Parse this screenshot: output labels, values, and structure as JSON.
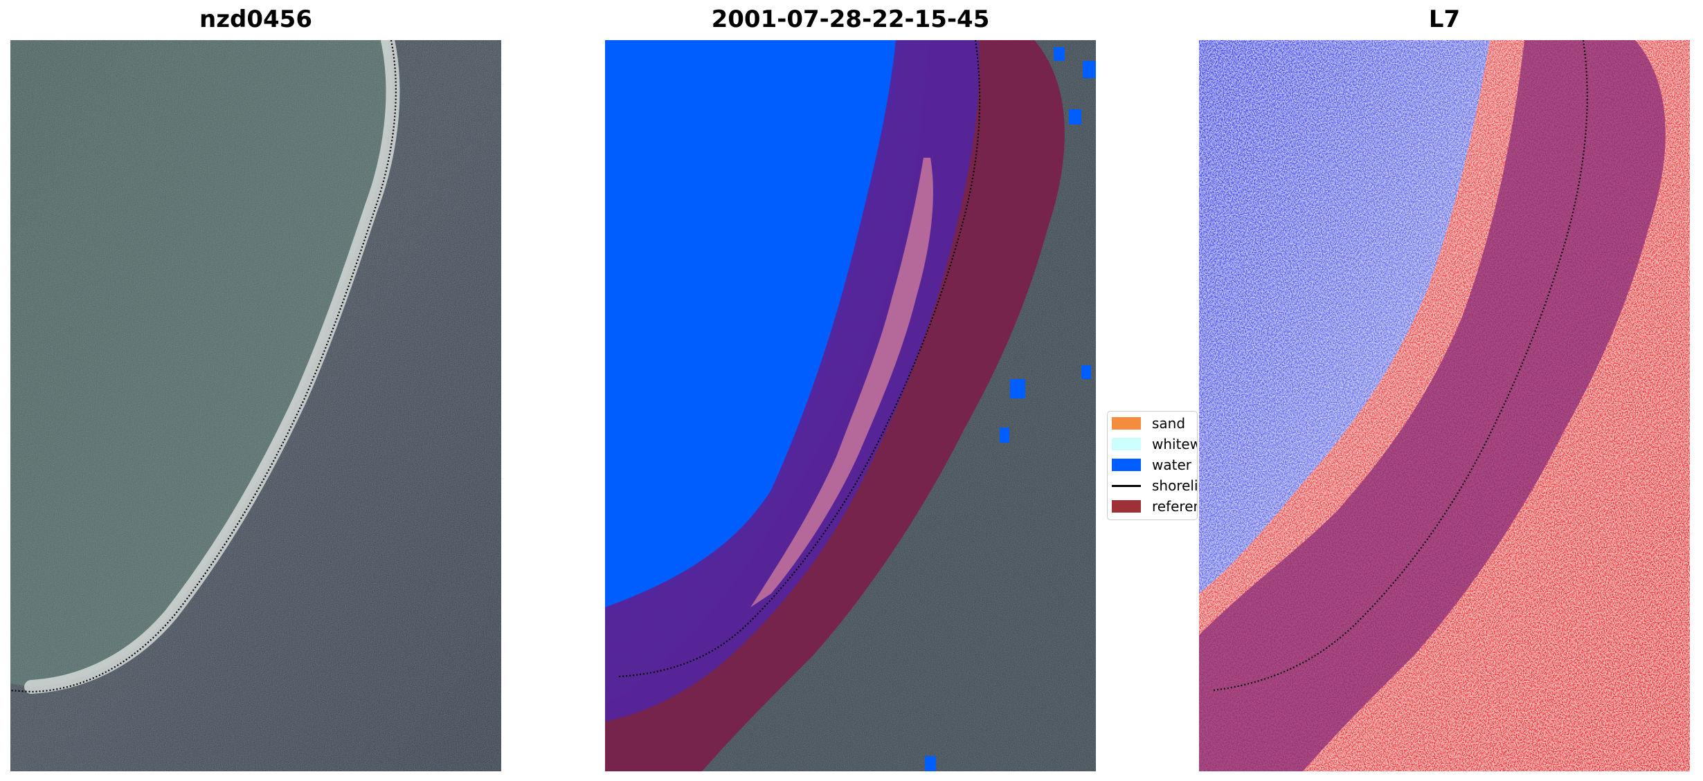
{
  "panels": [
    {
      "title": "nzd0456"
    },
    {
      "title": "2001-07-28-22-15-45"
    },
    {
      "title": "L7"
    }
  ],
  "legend": {
    "items": [
      {
        "label": "sand",
        "color": "#f58b3c"
      },
      {
        "label": "whitewater",
        "color": "#ccffff"
      },
      {
        "label": "water",
        "color": "#005eff"
      },
      {
        "label": "shoreline",
        "color": "#000000"
      },
      {
        "label": "reference shoreline buffer",
        "color": "#9e3135"
      }
    ]
  },
  "colors": {
    "water_class": "#005eff",
    "buffer": "#7a1f4a",
    "buffer_on_water": "#56249a",
    "sand_class_overlay": "#b5699a",
    "ocean_rgb": "#4f6e6b",
    "land_rgb": "#2f3f52",
    "index_negative": "#3b3bf5",
    "index_positive": "#f0322e"
  }
}
